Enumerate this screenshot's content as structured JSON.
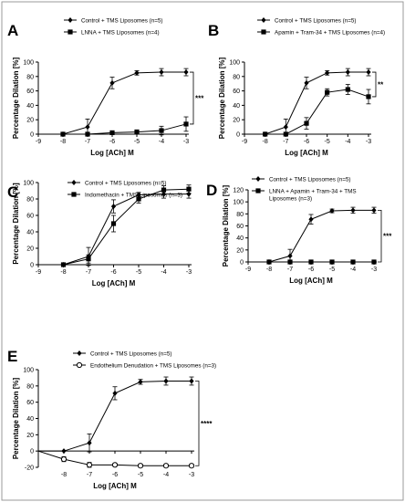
{
  "chart_data": [
    {
      "panel": "A",
      "type": "line",
      "xlabel": "Log [ACh] M",
      "ylabel": "Percentage Dilation [%]",
      "xlim": [
        -9,
        -3
      ],
      "ylim": [
        0,
        100
      ],
      "x_ticks": [
        "-9",
        "-8",
        "-7",
        "-6",
        "-5",
        "-4",
        "-3"
      ],
      "y_ticks": [
        "0",
        "20",
        "40",
        "60",
        "80",
        "100"
      ],
      "x": [
        -8,
        -7,
        -6,
        -5,
        -4,
        -3
      ],
      "series": [
        {
          "name": "Control + TMS Liposomes (n=5)",
          "marker": "diamond",
          "values": [
            0,
            10,
            71,
            85,
            86,
            86
          ],
          "errors": [
            0,
            11,
            8,
            3,
            5,
            5
          ]
        },
        {
          "name": "LNNA + TMS Liposomes (n=4)",
          "marker": "square",
          "values": [
            0,
            0,
            2,
            3,
            5,
            14
          ],
          "errors": [
            0,
            0,
            2,
            3,
            6,
            10
          ]
        }
      ],
      "significance": "***"
    },
    {
      "panel": "B",
      "type": "line",
      "xlabel": "Log [ACh] M",
      "ylabel": "Percentage Dilation [%]",
      "xlim": [
        -9,
        -3
      ],
      "ylim": [
        0,
        100
      ],
      "x_ticks": [
        "-9",
        "-8",
        "-7",
        "-6",
        "-5",
        "-4",
        "-3"
      ],
      "y_ticks": [
        "0",
        "20",
        "40",
        "60",
        "80",
        "100"
      ],
      "x": [
        -8,
        -7,
        -6,
        -5,
        -4,
        -3
      ],
      "series": [
        {
          "name": "Control + TMS Liposomes (n=5)",
          "marker": "diamond",
          "values": [
            0,
            10,
            71,
            85,
            86,
            86
          ],
          "errors": [
            0,
            11,
            8,
            3,
            5,
            5
          ]
        },
        {
          "name": "Apamin + Tram-34 + TMS Liposomes (n=4)",
          "marker": "square",
          "values": [
            0,
            0,
            15,
            58,
            62,
            52
          ],
          "errors": [
            0,
            0,
            8,
            5,
            7,
            10
          ]
        }
      ],
      "significance": "**"
    },
    {
      "panel": "C",
      "type": "line",
      "xlabel": "Log [ACh] M",
      "ylabel": "Percentage Dilation [%]",
      "xlim": [
        -9,
        -3
      ],
      "ylim": [
        0,
        100
      ],
      "x_ticks": [
        "-9",
        "-8",
        "-7",
        "-6",
        "-5",
        "-4",
        "-3"
      ],
      "y_ticks": [
        "0",
        "20",
        "40",
        "60",
        "80",
        "100"
      ],
      "x": [
        -8,
        -7,
        -6,
        -5,
        -4,
        -3
      ],
      "series": [
        {
          "name": "Control + TMS Liposomes (n=5)",
          "marker": "diamond",
          "values": [
            0,
            10,
            71,
            85,
            86,
            86
          ],
          "errors": [
            0,
            11,
            8,
            3,
            5,
            5
          ]
        },
        {
          "name": "Indomethacin + TMS Liposomes (n=3)",
          "marker": "square",
          "values": [
            0,
            7,
            50,
            80,
            91,
            92
          ],
          "errors": [
            0,
            5,
            10,
            5,
            5,
            5
          ]
        }
      ]
    },
    {
      "panel": "D",
      "type": "line",
      "xlabel": "Log [ACh] M",
      "ylabel": "Percentage Dilation [%]",
      "xlim": [
        -9,
        -3
      ],
      "ylim": [
        0,
        120
      ],
      "x_ticks": [
        "-9",
        "-8",
        "-7",
        "-6",
        "-5",
        "-4",
        "-3"
      ],
      "y_ticks": [
        "0",
        "20",
        "40",
        "60",
        "80",
        "100",
        "120"
      ],
      "x": [
        -8,
        -7,
        -6,
        -5,
        -4,
        -3
      ],
      "series": [
        {
          "name": "Control + TMS Liposomes (n=5)",
          "marker": "diamond",
          "values": [
            0,
            10,
            71,
            85,
            86,
            86
          ],
          "errors": [
            0,
            11,
            8,
            3,
            5,
            5
          ]
        },
        {
          "name": "LNNA + Apamin + Tram-34 + TMS Liposomes (n=3)",
          "legend_lines": [
            "LNNA + Apamin + Tram-34 + TMS",
            "Liposomes (n=3)"
          ],
          "marker": "square",
          "values": [
            0,
            0,
            0,
            0,
            0,
            0
          ],
          "errors": [
            0,
            0,
            0,
            0,
            0,
            0
          ]
        }
      ],
      "significance": "***"
    },
    {
      "panel": "E",
      "type": "line",
      "xlabel": "Log [ACh] M",
      "ylabel": "Percentage Dilation [%]",
      "xlim": [
        -9,
        -3
      ],
      "ylim": [
        -20,
        100
      ],
      "x_ticks": [
        "-8",
        "-7",
        "-6",
        "-5",
        "-4",
        "-3"
      ],
      "y_ticks": [
        "-20",
        "0",
        "20",
        "40",
        "60",
        "80",
        "100"
      ],
      "x": [
        -8,
        -7,
        -6,
        -5,
        -4,
        -3
      ],
      "series": [
        {
          "name": "Control + TMS Liposomes (n=5)",
          "marker": "diamond",
          "values": [
            0,
            10,
            71,
            85,
            86,
            86
          ],
          "errors": [
            0,
            11,
            8,
            3,
            5,
            5
          ]
        },
        {
          "name": "Endothelium Denudation + TMS Liposomes (n=3)",
          "marker": "circle",
          "values": [
            -10,
            -17,
            -17,
            -18,
            -18,
            -18
          ],
          "errors": [
            3,
            3,
            2,
            2,
            2,
            2
          ]
        }
      ],
      "significance": "****"
    }
  ]
}
